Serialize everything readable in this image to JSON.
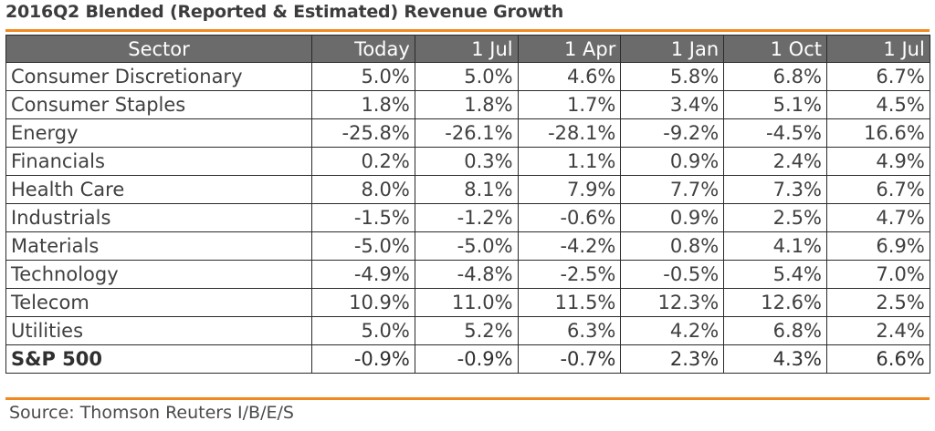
{
  "title": "2016Q2 Blended (Reported & Estimated) Revenue Growth",
  "accent_color": "#f0891f",
  "header_bg_color": "#6b6b6b",
  "columns": [
    "Sector",
    "Today",
    "1 Jul",
    "1 Apr",
    "1 Jan",
    "1 Oct",
    "1 Jul"
  ],
  "rows": [
    {
      "sector": "Consumer Discretionary",
      "values": [
        "5.0%",
        "5.0%",
        "4.6%",
        "5.8%",
        "6.8%",
        "6.7%"
      ]
    },
    {
      "sector": "Consumer Staples",
      "values": [
        "1.8%",
        "1.8%",
        "1.7%",
        "3.4%",
        "5.1%",
        "4.5%"
      ]
    },
    {
      "sector": "Energy",
      "values": [
        "-25.8%",
        "-26.1%",
        "-28.1%",
        "-9.2%",
        "-4.5%",
        "16.6%"
      ]
    },
    {
      "sector": "Financials",
      "values": [
        "0.2%",
        "0.3%",
        "1.1%",
        "0.9%",
        "2.4%",
        "4.9%"
      ]
    },
    {
      "sector": "Health Care",
      "values": [
        "8.0%",
        "8.1%",
        "7.9%",
        "7.7%",
        "7.3%",
        "6.7%"
      ]
    },
    {
      "sector": "Industrials",
      "values": [
        "-1.5%",
        "-1.2%",
        "-0.6%",
        "0.9%",
        "2.5%",
        "4.7%"
      ]
    },
    {
      "sector": "Materials",
      "values": [
        "-5.0%",
        "-5.0%",
        "-4.2%",
        "0.8%",
        "4.1%",
        "6.9%"
      ]
    },
    {
      "sector": "Technology",
      "values": [
        "-4.9%",
        "-4.8%",
        "-2.5%",
        "-0.5%",
        "5.4%",
        "7.0%"
      ]
    },
    {
      "sector": "Telecom",
      "values": [
        "10.9%",
        "11.0%",
        "11.5%",
        "12.3%",
        "12.6%",
        "2.5%"
      ]
    },
    {
      "sector": "Utilities",
      "values": [
        "5.0%",
        "5.2%",
        "6.3%",
        "4.2%",
        "6.8%",
        "2.4%"
      ]
    }
  ],
  "total": {
    "sector": "S&P 500",
    "values": [
      "-0.9%",
      "-0.9%",
      "-0.7%",
      "2.3%",
      "4.3%",
      "6.6%"
    ]
  },
  "source": "Source: Thomson Reuters I/B/E/S"
}
